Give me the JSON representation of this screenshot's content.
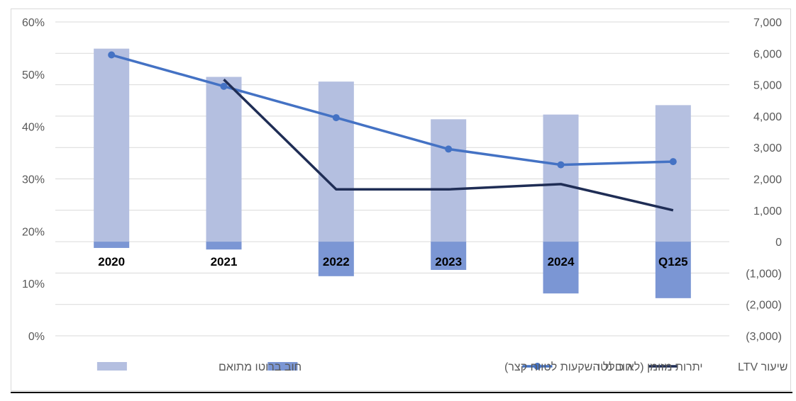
{
  "chart_data": {
    "type": "bar",
    "categories": [
      "2020",
      "2021",
      "2022",
      "2023",
      "2024",
      "Q125"
    ],
    "series": [
      {
        "name": "חוב ברוטו מתואם",
        "kind": "bar",
        "axis": "right",
        "color": "#b4bfe0",
        "values": [
          6150,
          5250,
          5100,
          3900,
          4050,
          4350
        ]
      },
      {
        "name": "יתרות מזומן (לא כולל השקעות לטווח קצר)",
        "kind": "bar",
        "axis": "right",
        "color": "#7b96d4",
        "values": [
          -200,
          -250,
          -1100,
          -900,
          -1650,
          -1800
        ]
      },
      {
        "name": "חוב נטו",
        "kind": "line-markers",
        "axis": "right",
        "color": "#4472c4",
        "values": [
          5950,
          4950,
          3950,
          2950,
          2450,
          2550
        ]
      },
      {
        "name": "שיעור LTV",
        "kind": "line",
        "axis": "left",
        "color": "#1f2d55",
        "values": [
          null,
          0.49,
          0.28,
          0.28,
          0.29,
          0.24
        ]
      }
    ],
    "left_axis": {
      "ticks": [
        "60%",
        "50%",
        "40%",
        "30%",
        "20%",
        "10%",
        "0%"
      ],
      "ylim": [
        0,
        0.6
      ]
    },
    "right_axis": {
      "ticks": [
        "7,000",
        "6,000",
        "5,000",
        "4,000",
        "3,000",
        "2,000",
        "1,000",
        "0",
        "(1,000)",
        "(2,000)",
        "(3,000)"
      ],
      "ylim": [
        -3000,
        7000
      ]
    },
    "legend_position": "bottom",
    "legend_order": [
      "שיעור LTV",
      "חוב נטו",
      "יתרות מזומן (לא כולל השקעות לטווח קצר)",
      "חוב ברוטו מתואם"
    ],
    "grid": true
  }
}
